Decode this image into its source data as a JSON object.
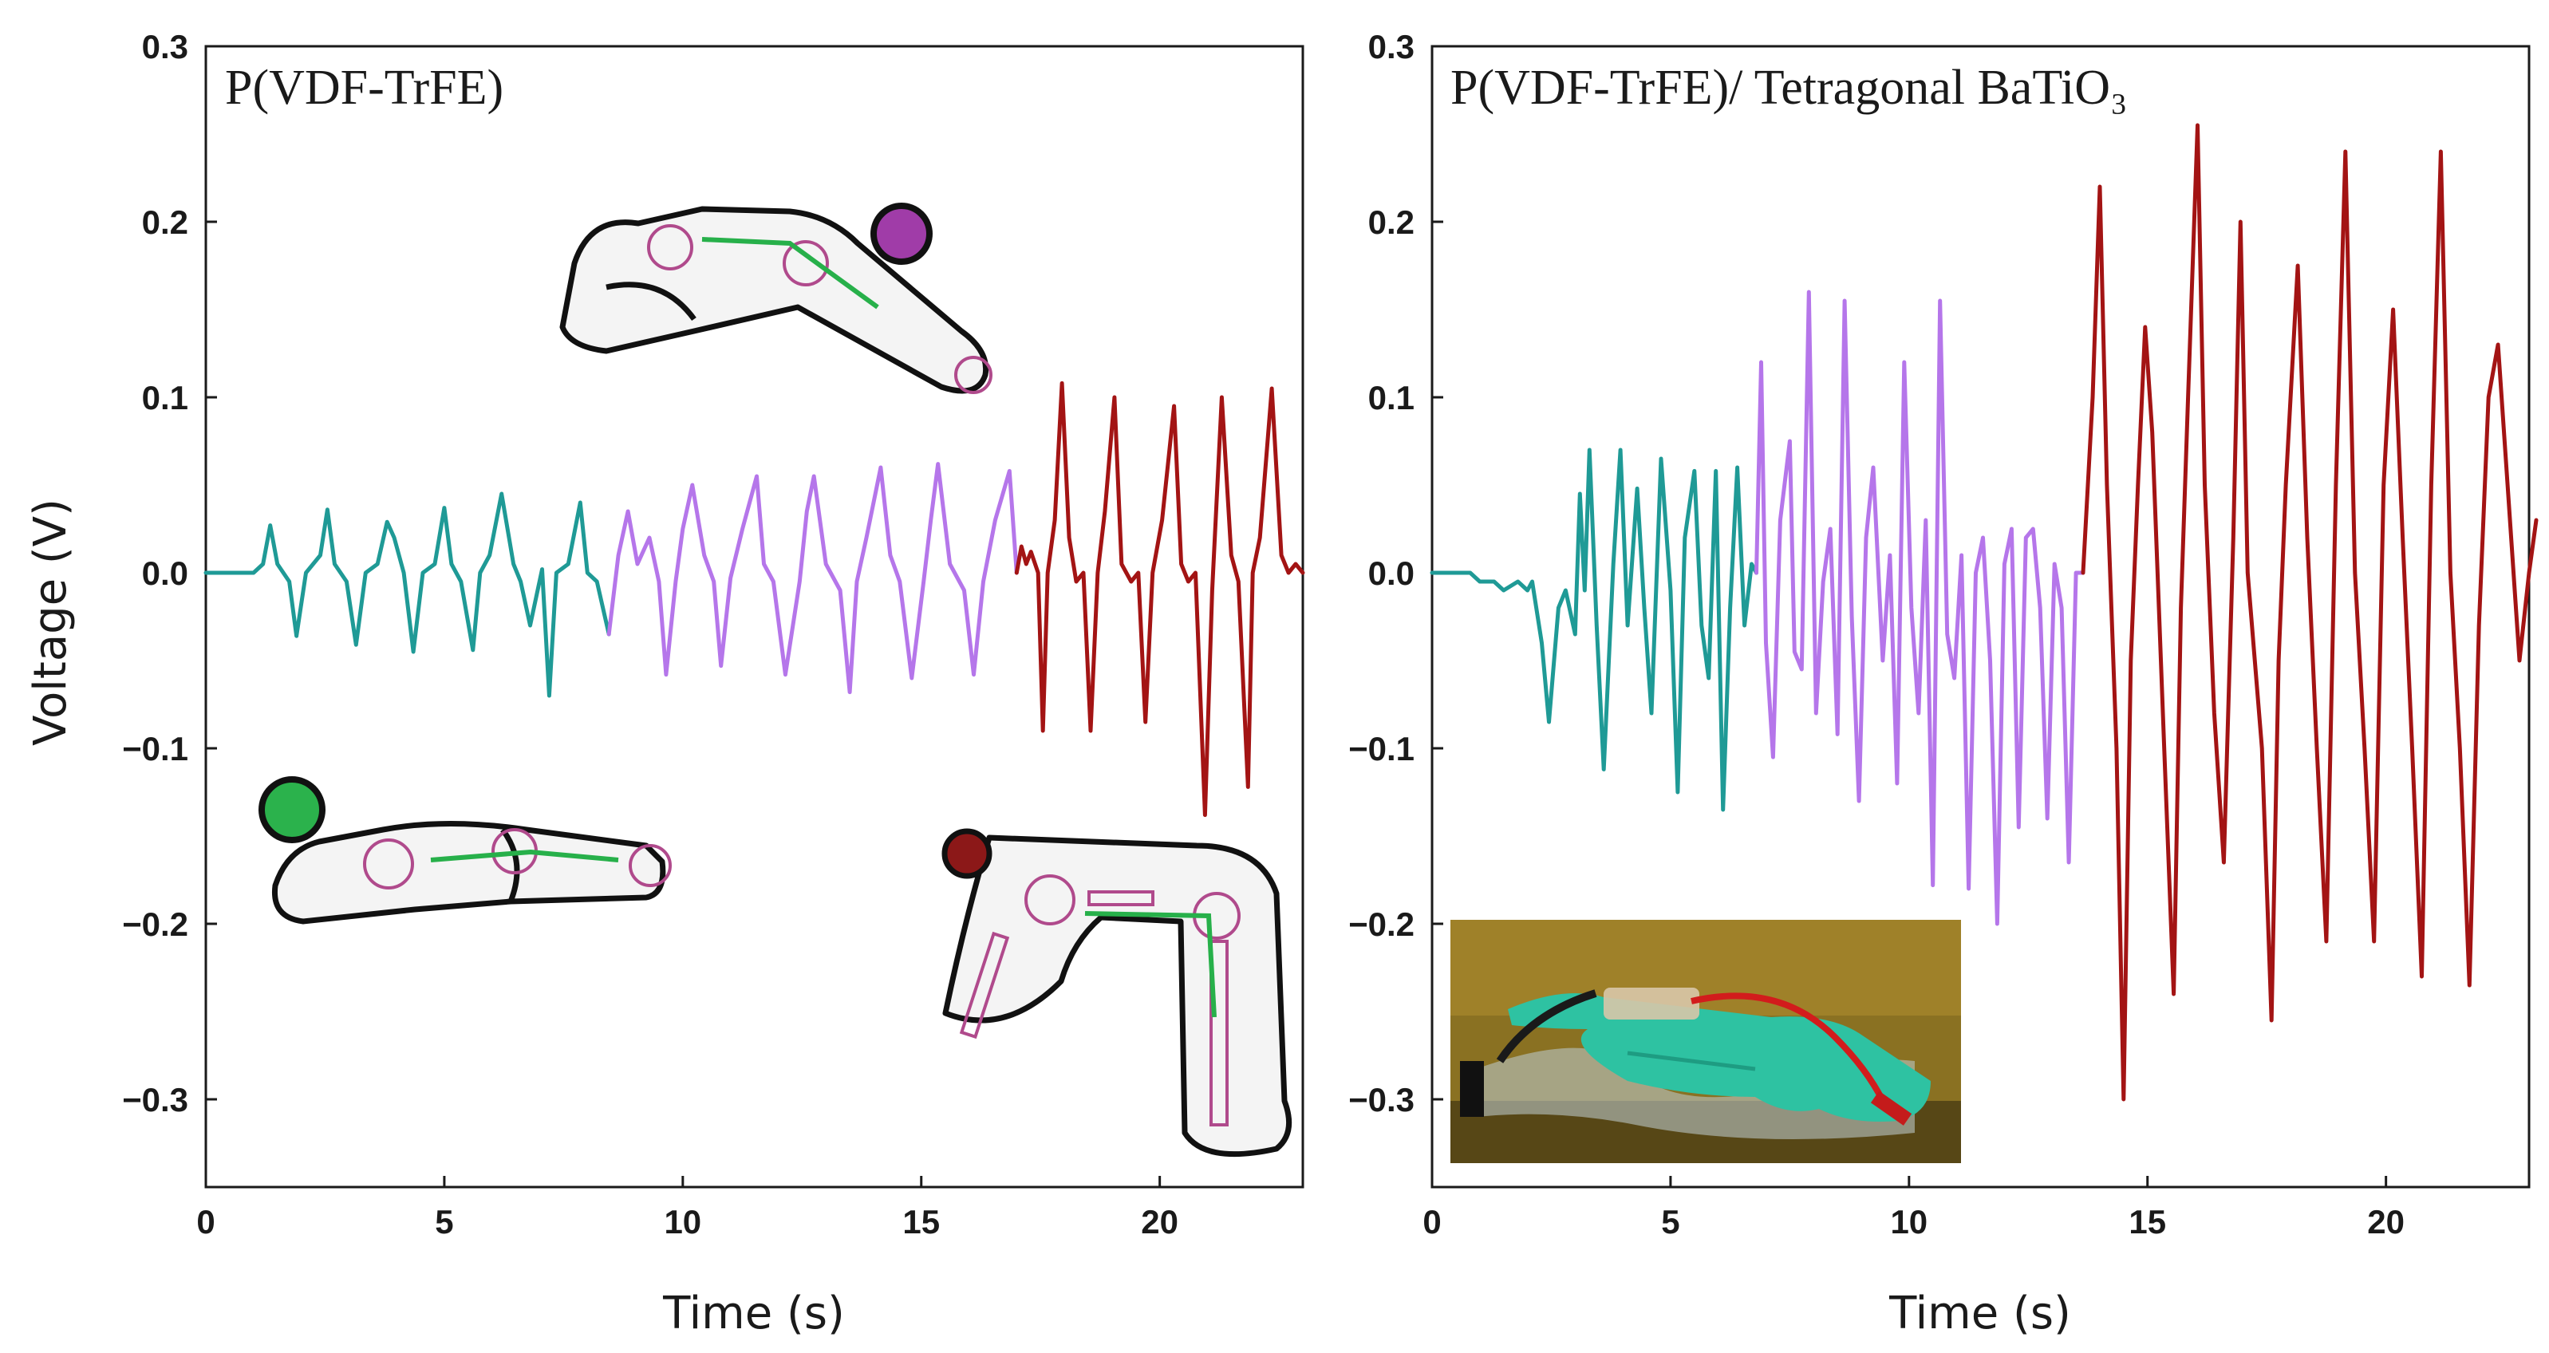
{
  "figure": {
    "colors": {
      "teal": "#1f9a96",
      "purple": "#b576ea",
      "darkred": "#a31414",
      "green": "#2bb24c",
      "magenta": "#a03ca8",
      "maroon": "#8c1818"
    },
    "icons": [
      "finger-straight-sketch",
      "finger-bent-sketch",
      "finger-folded-sketch",
      "glove-sensor-photo"
    ]
  },
  "chart_data": [
    {
      "type": "line",
      "title": "P(VDF-TrFE)",
      "xlabel": "Time (s)",
      "ylabel": "Voltage (V)",
      "xlim": [
        0,
        23
      ],
      "ylim": [
        -0.35,
        0.3
      ],
      "xticks": [
        "0",
        "5",
        "10",
        "15",
        "20"
      ],
      "xtick_values": [
        0,
        5,
        10,
        15,
        20
      ],
      "yticks": [
        "0.3",
        "0.2",
        "0.1",
        "0.0",
        "−0.1",
        "−0.2",
        "−0.3"
      ],
      "ytick_values": [
        0.3,
        0.2,
        0.1,
        0.0,
        -0.1,
        -0.2,
        -0.3
      ],
      "series": [
        {
          "name": "straight",
          "color": "#1f9a96",
          "x": [
            0,
            1.0,
            1.2,
            1.35,
            1.5,
            1.75,
            1.9,
            2.1,
            2.4,
            2.55,
            2.7,
            2.95,
            3.15,
            3.35,
            3.6,
            3.8,
            3.95,
            4.15,
            4.35,
            4.55,
            4.8,
            5.0,
            5.15,
            5.35,
            5.6,
            5.75,
            5.95,
            6.2,
            6.45,
            6.6,
            6.8,
            7.05,
            7.2,
            7.35,
            7.6,
            7.85,
            8.0,
            8.2,
            8.45
          ],
          "y": [
            0,
            0,
            0.005,
            0.027,
            0.005,
            -0.005,
            -0.036,
            0,
            0.01,
            0.036,
            0.005,
            -0.005,
            -0.041,
            0,
            0.005,
            0.029,
            0.02,
            0,
            -0.045,
            0,
            0.005,
            0.037,
            0.005,
            -0.005,
            -0.044,
            0,
            0.01,
            0.045,
            0.005,
            -0.005,
            -0.03,
            0.002,
            -0.07,
            0,
            0.005,
            0.04,
            0,
            -0.005,
            -0.035
          ]
        },
        {
          "name": "bent",
          "color": "#b576ea",
          "x": [
            8.45,
            8.65,
            8.85,
            9.05,
            9.3,
            9.5,
            9.65,
            9.85,
            10.0,
            10.2,
            10.45,
            10.65,
            10.8,
            11.0,
            11.25,
            11.55,
            11.7,
            11.9,
            12.15,
            12.45,
            12.6,
            12.75,
            13.0,
            13.3,
            13.5,
            13.65,
            13.85,
            14.15,
            14.35,
            14.55,
            14.8,
            15.05,
            15.2,
            15.35,
            15.6,
            15.9,
            16.1,
            16.3,
            16.55,
            16.85,
            17.0
          ],
          "y": [
            -0.035,
            0.01,
            0.035,
            0.005,
            0.02,
            -0.005,
            -0.058,
            -0.005,
            0.025,
            0.05,
            0.01,
            -0.005,
            -0.053,
            -0.003,
            0.025,
            0.055,
            0.005,
            -0.005,
            -0.058,
            -0.005,
            0.035,
            0.055,
            0.005,
            -0.01,
            -0.068,
            -0.005,
            0.02,
            0.06,
            0.01,
            -0.005,
            -0.06,
            -0.005,
            0.03,
            0.062,
            0.005,
            -0.01,
            -0.058,
            -0.005,
            0.03,
            0.058,
            0.0
          ]
        },
        {
          "name": "folded",
          "color": "#a31414",
          "x": [
            17.0,
            17.1,
            17.2,
            17.3,
            17.45,
            17.55,
            17.65,
            17.8,
            17.95,
            18.1,
            18.25,
            18.4,
            18.55,
            18.7,
            18.85,
            19.05,
            19.2,
            19.4,
            19.55,
            19.7,
            19.85,
            20.05,
            20.3,
            20.45,
            20.6,
            20.75,
            20.95,
            21.1,
            21.3,
            21.5,
            21.65,
            21.85,
            21.95,
            22.1,
            22.35,
            22.55,
            22.7,
            22.85,
            23.0
          ],
          "y": [
            0.0,
            0.015,
            0.005,
            0.012,
            0.0,
            -0.09,
            0.0,
            0.03,
            0.108,
            0.02,
            -0.005,
            0.0,
            -0.09,
            0.0,
            0.035,
            0.1,
            0.005,
            -0.005,
            0.0,
            -0.085,
            0.0,
            0.03,
            0.095,
            0.005,
            -0.005,
            0.0,
            -0.138,
            -0.01,
            0.1,
            0.01,
            -0.005,
            -0.122,
            0.0,
            0.02,
            0.105,
            0.01,
            0.0,
            0.005,
            0.0
          ]
        }
      ]
    },
    {
      "type": "line",
      "title": "P(VDF-TrFE)/ Tetragonal BaTiO₃",
      "xlabel": "Time (s)",
      "ylabel": "",
      "xlim": [
        0,
        23
      ],
      "ylim": [
        -0.35,
        0.3
      ],
      "xticks": [
        "0",
        "5",
        "10",
        "15",
        "20"
      ],
      "xtick_values": [
        0,
        5,
        10,
        15,
        20
      ],
      "yticks": [
        "0.3",
        "0.2",
        "0.1",
        "0.0",
        "−0.1",
        "−0.2",
        "−0.3"
      ],
      "ytick_values": [
        0.3,
        0.2,
        0.1,
        0.0,
        -0.1,
        -0.2,
        -0.3
      ],
      "series": [
        {
          "name": "straight",
          "color": "#1f9a96",
          "x": [
            0,
            0.8,
            1.0,
            1.3,
            1.5,
            1.8,
            2.0,
            2.1,
            2.3,
            2.45,
            2.65,
            2.8,
            3.0,
            3.1,
            3.2,
            3.3,
            3.45,
            3.6,
            3.8,
            3.95,
            4.1,
            4.3,
            4.45,
            4.6,
            4.8,
            5.0,
            5.15,
            5.3,
            5.5,
            5.65,
            5.8,
            5.95,
            6.1,
            6.25,
            6.4,
            6.55,
            6.7,
            6.8
          ],
          "y": [
            0,
            0,
            -0.005,
            -0.005,
            -0.01,
            -0.005,
            -0.01,
            -0.005,
            -0.04,
            -0.085,
            -0.02,
            -0.01,
            -0.035,
            0.045,
            -0.01,
            0.07,
            -0.03,
            -0.112,
            0.005,
            0.07,
            -0.03,
            0.048,
            -0.02,
            -0.08,
            0.065,
            -0.01,
            -0.125,
            0.02,
            0.058,
            -0.03,
            -0.06,
            0.058,
            -0.135,
            -0.02,
            0.06,
            -0.03,
            0.005,
            0.0
          ]
        },
        {
          "name": "bent",
          "color": "#b576ea",
          "x": [
            6.8,
            6.9,
            7.0,
            7.15,
            7.3,
            7.5,
            7.6,
            7.75,
            7.9,
            8.05,
            8.2,
            8.35,
            8.5,
            8.65,
            8.8,
            8.95,
            9.1,
            9.25,
            9.45,
            9.6,
            9.75,
            9.9,
            10.05,
            10.2,
            10.35,
            10.5,
            10.65,
            10.8,
            10.95,
            11.1,
            11.25,
            11.4,
            11.55,
            11.7,
            11.85,
            12.0,
            12.15,
            12.3,
            12.45,
            12.6,
            12.75,
            12.9,
            13.05,
            13.2,
            13.35,
            13.5,
            13.65
          ],
          "y": [
            0.0,
            0.12,
            -0.04,
            -0.105,
            0.03,
            0.075,
            -0.045,
            -0.055,
            0.16,
            -0.08,
            -0.005,
            0.025,
            -0.092,
            0.155,
            -0.025,
            -0.13,
            0.02,
            0.06,
            -0.05,
            0.01,
            -0.12,
            0.12,
            -0.02,
            -0.08,
            0.03,
            -0.178,
            0.155,
            -0.035,
            -0.06,
            0.01,
            -0.18,
            0.0,
            0.02,
            -0.05,
            -0.2,
            0.005,
            0.025,
            -0.145,
            0.02,
            0.025,
            -0.02,
            -0.14,
            0.005,
            -0.02,
            -0.165,
            0.0,
            0.0
          ]
        },
        {
          "name": "folded",
          "color": "#a31414",
          "x": [
            13.65,
            13.85,
            14.0,
            14.15,
            14.35,
            14.5,
            14.65,
            14.8,
            14.95,
            15.1,
            15.35,
            15.55,
            15.7,
            15.85,
            16.05,
            16.2,
            16.4,
            16.6,
            16.8,
            16.95,
            17.1,
            17.4,
            17.6,
            17.75,
            17.9,
            18.15,
            18.35,
            18.55,
            18.75,
            18.95,
            19.15,
            19.35,
            19.55,
            19.75,
            19.95,
            20.15,
            20.35,
            20.55,
            20.75,
            20.95,
            21.15,
            21.35,
            21.55,
            21.75,
            21.95,
            22.15,
            22.35,
            22.55,
            22.8,
            23.0,
            23.15
          ],
          "y": [
            0.0,
            0.1,
            0.22,
            0.05,
            -0.1,
            -0.3,
            -0.05,
            0.05,
            0.14,
            0.08,
            -0.1,
            -0.24,
            -0.02,
            0.1,
            0.255,
            0.05,
            -0.08,
            -0.165,
            0.02,
            0.2,
            0.0,
            -0.1,
            -0.255,
            -0.05,
            0.05,
            0.175,
            0.02,
            -0.1,
            -0.21,
            0.05,
            0.24,
            0.0,
            -0.1,
            -0.21,
            0.05,
            0.15,
            0.02,
            -0.1,
            -0.23,
            0.05,
            0.24,
            0.0,
            -0.1,
            -0.235,
            -0.03,
            0.1,
            0.13,
            0.05,
            -0.05,
            0.0,
            0.03
          ]
        }
      ]
    }
  ]
}
